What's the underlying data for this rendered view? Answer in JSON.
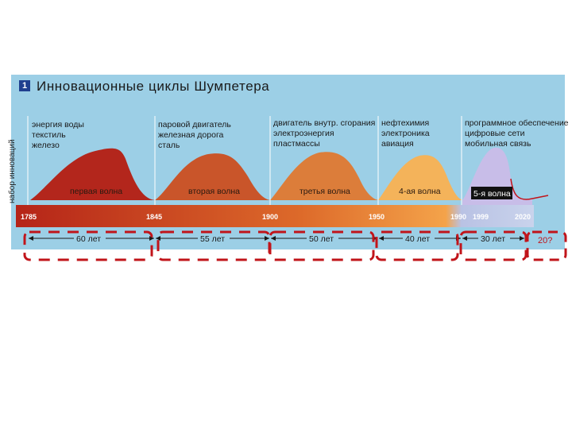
{
  "header": {
    "number": "1",
    "title": "Инновационные циклы Шумпетера",
    "y_axis_label": "набор инноваций"
  },
  "waves": [
    {
      "name": "первая волна",
      "innovations": [
        "энергия воды",
        "текстиль",
        "железо"
      ]
    },
    {
      "name": "вторая волна",
      "innovations": [
        "паровой двигатель",
        "железная дорога",
        "сталь"
      ]
    },
    {
      "name": "третья волна",
      "innovations": [
        "двигатель внутр. сгорания",
        "электроэнергия",
        "пластмассы"
      ]
    },
    {
      "name": "4-ая волна",
      "innovations": [
        "нефтехимия",
        "электроника",
        "авиация"
      ]
    },
    {
      "name": "5-я волна",
      "innovations": [
        "программное обеспечение",
        "цифровые сети",
        "мобильная связь"
      ]
    }
  ],
  "years": [
    "1785",
    "1845",
    "1900",
    "1950",
    "1990",
    "1999",
    "2020"
  ],
  "durations": [
    "60 лет",
    "55 лет",
    "50 лет",
    "40 лет",
    "30 лет"
  ],
  "next_duration": "20?",
  "colors": {
    "panel_bg": "#9ccfe6",
    "wave1": "#b3261c",
    "wave2": "#c9552a",
    "wave3": "#dc7d3a",
    "wave4": "#f4b35a",
    "wave5": "#c8bde8",
    "dash_box": "#c1141a"
  }
}
